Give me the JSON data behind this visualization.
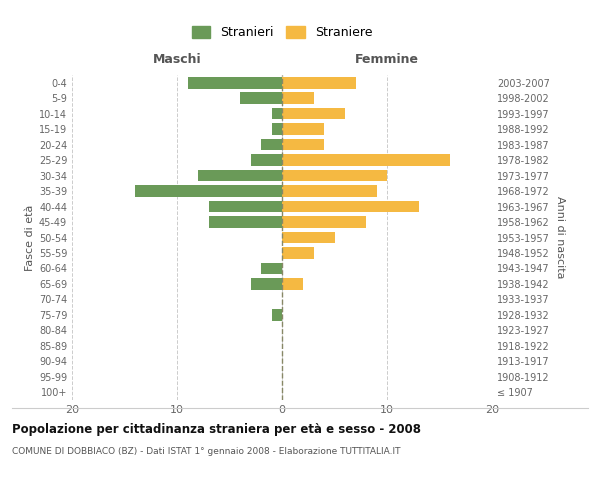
{
  "age_groups": [
    "100+",
    "95-99",
    "90-94",
    "85-89",
    "80-84",
    "75-79",
    "70-74",
    "65-69",
    "60-64",
    "55-59",
    "50-54",
    "45-49",
    "40-44",
    "35-39",
    "30-34",
    "25-29",
    "20-24",
    "15-19",
    "10-14",
    "5-9",
    "0-4"
  ],
  "birth_years": [
    "≤ 1907",
    "1908-1912",
    "1913-1917",
    "1918-1922",
    "1923-1927",
    "1928-1932",
    "1933-1937",
    "1938-1942",
    "1943-1947",
    "1948-1952",
    "1953-1957",
    "1958-1962",
    "1963-1967",
    "1968-1972",
    "1973-1977",
    "1978-1982",
    "1983-1987",
    "1988-1992",
    "1993-1997",
    "1998-2002",
    "2003-2007"
  ],
  "males": [
    0,
    0,
    0,
    0,
    0,
    1,
    0,
    3,
    2,
    0,
    0,
    7,
    7,
    14,
    8,
    3,
    2,
    1,
    1,
    4,
    9
  ],
  "females": [
    0,
    0,
    0,
    0,
    0,
    0,
    0,
    2,
    0,
    3,
    5,
    8,
    13,
    9,
    10,
    16,
    4,
    4,
    6,
    3,
    7
  ],
  "male_color": "#6a9a58",
  "female_color": "#f5b942",
  "background_color": "#ffffff",
  "grid_color": "#cccccc",
  "title": "Popolazione per cittadinanza straniera per età e sesso - 2008",
  "subtitle": "COMUNE DI DOBBIACO (BZ) - Dati ISTAT 1° gennaio 2008 - Elaborazione TUTTITALIA.IT",
  "xlabel_left": "Maschi",
  "xlabel_right": "Femmine",
  "ylabel_left": "Fasce di età",
  "ylabel_right": "Anni di nascita",
  "xlim": 20,
  "legend_stranieri": "Stranieri",
  "legend_straniere": "Straniere"
}
